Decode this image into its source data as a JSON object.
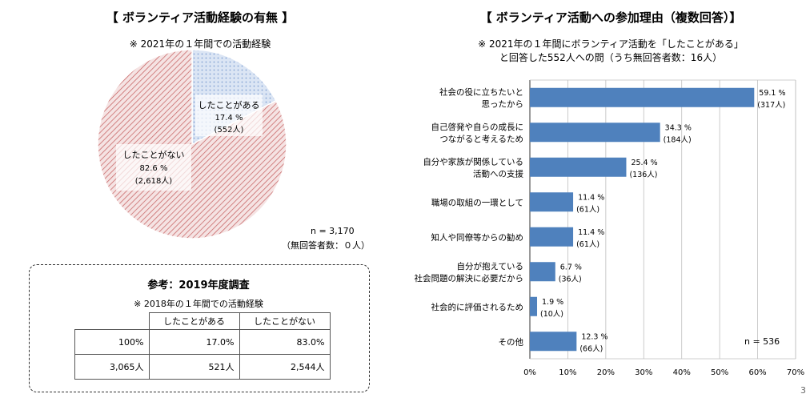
{
  "left": {
    "title": "【 ボランティア活動経験の有無 】",
    "subtitle": "※ 2021年の１年間での活動経験",
    "pie": {
      "slices": [
        {
          "label": "したことがある",
          "pct": "17.4 %",
          "count": "(552人)",
          "value": 17.4,
          "color": "#dbe5f4",
          "dot": "#7f9fd2"
        },
        {
          "label": "したことがない",
          "pct": "82.6 %",
          "count": "(2,618人)",
          "value": 82.6,
          "color": "#f5e3e3",
          "dot": "#c96a6a"
        }
      ]
    },
    "n_note": "n = 3,170",
    "n_note2": "（無回答者数：０人）"
  },
  "reference": {
    "title": "参考：2019年度調査",
    "subtitle": "※ 2018年の１年間での活動経験",
    "headers": [
      "",
      "したことがある",
      "したことがない"
    ],
    "rows": [
      [
        "100%",
        "17.0%",
        "83.0%"
      ],
      [
        "3,065人",
        "521人",
        "2,544人"
      ]
    ]
  },
  "right": {
    "title": "【 ボランティア活動への参加理由（複数回答）】",
    "subtitle1": "※ 2021年の１年間にボランティア活動を「したことがある」",
    "subtitle2": "と回答した552人への問（うち無回答者数：16人）",
    "n_note": "n = 536"
  },
  "chart_data": {
    "type": "bar",
    "orientation": "horizontal",
    "categories": [
      [
        "社会の役に立ちたいと",
        "思ったから"
      ],
      [
        "自己啓発や自らの成長に",
        "つながると考えるため"
      ],
      [
        "自分や家族が関係している",
        "活動への支援"
      ],
      [
        "職場の取組の一環として"
      ],
      [
        "知人や同僚等からの勧め"
      ],
      [
        "自分が抱えている",
        "社会問題の解決に必要だから"
      ],
      [
        "社会的に評価されるため"
      ],
      [
        "その他"
      ]
    ],
    "values": [
      59.1,
      34.3,
      25.4,
      11.4,
      11.4,
      6.7,
      1.9,
      12.3
    ],
    "value_labels": [
      "59.1 %",
      "34.3 %",
      "25.4 %",
      "11.4 %",
      "11.4 %",
      "6.7 %",
      "1.9 %",
      "12.3 %"
    ],
    "count_labels": [
      "(317人)",
      "(184人)",
      "(136人)",
      "(61人)",
      "(61人)",
      "(36人)",
      "(10人)",
      "(66人)"
    ],
    "xlim": [
      0,
      70
    ],
    "xticks": [
      "0%",
      "10%",
      "20%",
      "30%",
      "40%",
      "50%",
      "60%",
      "70%"
    ],
    "bar_color": "#4f81bd",
    "grid": true
  },
  "page_number": "3"
}
